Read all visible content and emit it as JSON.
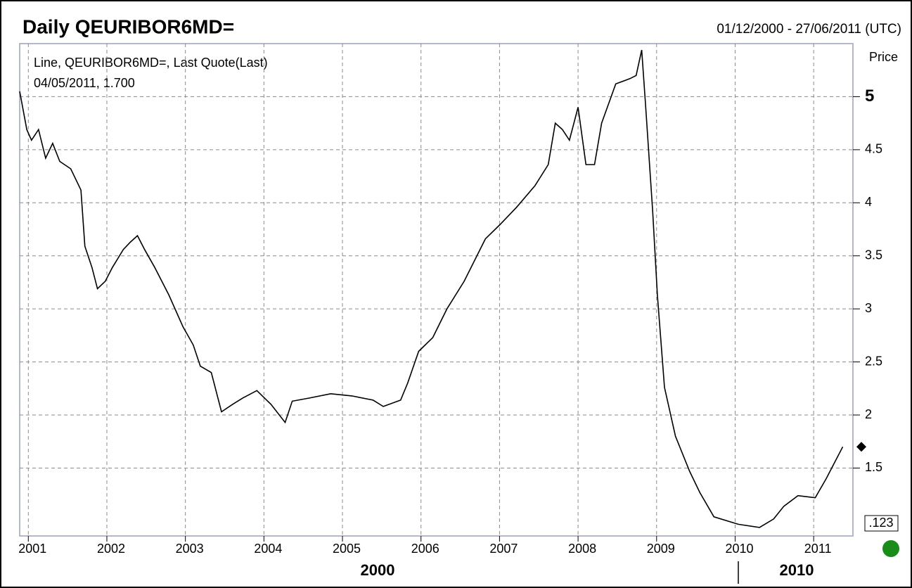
{
  "chart_data": {
    "type": "line",
    "title": "Daily QEURIBOR6MD=",
    "subtitle": "01/12/2000 - 27/06/2011 (UTC)",
    "legend_text": "Line, QEURIBOR6MD=, Last Quote(Last)",
    "last_quote": "04/05/2011, 1.700",
    "y_axis_label": "Price",
    "marker_label": ".123",
    "era_labels": [
      "2000",
      "2010"
    ],
    "color": "#000000",
    "grid": true,
    "x": [
      2000.89,
      2000.98,
      2001.04,
      2001.13,
      2001.22,
      2001.31,
      2001.4,
      2001.54,
      2001.67,
      2001.72,
      2001.81,
      2001.88,
      2001.98,
      2002.07,
      2002.21,
      2002.3,
      2002.39,
      2002.48,
      2002.61,
      2002.79,
      2002.97,
      2003.1,
      2003.19,
      2003.33,
      2003.46,
      2003.6,
      2003.73,
      2003.91,
      2004.09,
      2004.27,
      2004.36,
      2004.58,
      2004.85,
      2005.12,
      2005.39,
      2005.52,
      2005.74,
      2005.83,
      2005.97,
      2006.15,
      2006.33,
      2006.55,
      2006.82,
      2007.0,
      2007.22,
      2007.45,
      2007.62,
      2007.71,
      2007.8,
      2007.89,
      2008.0,
      2008.1,
      2008.21,
      2008.3,
      2008.48,
      2008.66,
      2008.74,
      2008.81,
      2008.86,
      2008.95,
      2009.01,
      2009.1,
      2009.24,
      2009.42,
      2009.55,
      2009.73,
      2010.04,
      2010.31,
      2010.49,
      2010.62,
      2010.8,
      2011.02,
      2011.16,
      2011.37
    ],
    "values": [
      5.05,
      4.69,
      4.59,
      4.69,
      4.42,
      4.56,
      4.39,
      4.32,
      4.12,
      3.59,
      3.39,
      3.19,
      3.26,
      3.39,
      3.56,
      3.63,
      3.69,
      3.56,
      3.39,
      3.13,
      2.83,
      2.66,
      2.46,
      2.4,
      2.03,
      2.1,
      2.16,
      2.23,
      2.1,
      1.93,
      2.13,
      2.16,
      2.2,
      2.18,
      2.14,
      2.08,
      2.14,
      2.3,
      2.6,
      2.73,
      3.0,
      3.26,
      3.66,
      3.79,
      3.96,
      4.16,
      4.36,
      4.75,
      4.69,
      4.59,
      4.9,
      4.36,
      4.36,
      4.75,
      5.12,
      5.17,
      5.2,
      5.44,
      4.92,
      3.92,
      3.13,
      2.26,
      1.8,
      1.47,
      1.27,
      1.04,
      0.97,
      0.94,
      1.02,
      1.14,
      1.24,
      1.22,
      1.4,
      1.7
    ],
    "xlim": [
      2000.89,
      2011.5
    ],
    "xticks": [
      2001,
      2002,
      2003,
      2004,
      2005,
      2006,
      2007,
      2008,
      2009,
      2010,
      2011
    ],
    "ylim": [
      0.86,
      5.5
    ],
    "yticks": [
      1.5,
      2,
      2.5,
      3,
      3.5,
      4,
      4.5,
      5
    ]
  }
}
